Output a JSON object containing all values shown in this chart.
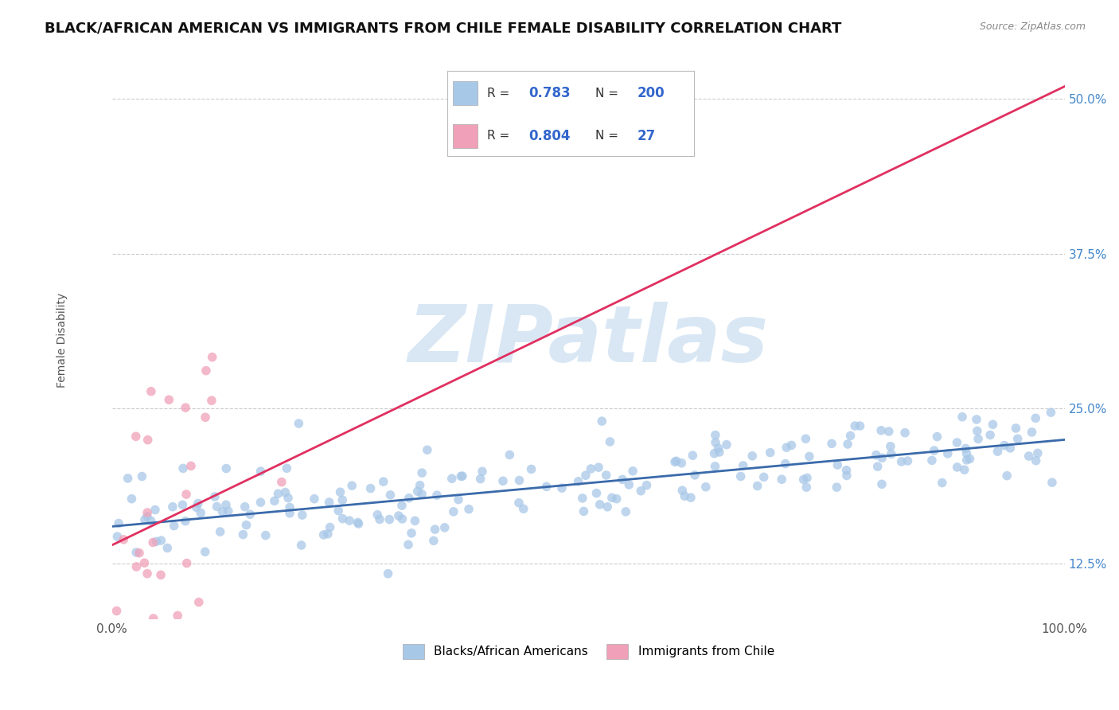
{
  "title": "BLACK/AFRICAN AMERICAN VS IMMIGRANTS FROM CHILE FEMALE DISABILITY CORRELATION CHART",
  "source": "Source: ZipAtlas.com",
  "ylabel": "Female Disability",
  "xlim": [
    0,
    100
  ],
  "ylim": [
    8,
    53
  ],
  "yticks": [
    12.5,
    25.0,
    37.5,
    50.0
  ],
  "ytick_labels": [
    "12.5%",
    "25.0%",
    "37.5%",
    "50.0%"
  ],
  "xticks": [
    0,
    10,
    20,
    30,
    40,
    50,
    60,
    70,
    80,
    90,
    100
  ],
  "xtick_labels": [
    "0.0%",
    "",
    "",
    "",
    "",
    "",
    "",
    "",
    "",
    "",
    "100.0%"
  ],
  "blue_R": 0.783,
  "blue_N": 200,
  "pink_R": 0.804,
  "pink_N": 27,
  "blue_color": "#a8c8e8",
  "pink_color": "#f0a0b8",
  "blue_line_color": "#3a6aaa",
  "pink_line_color": "#e03060",
  "legend_label_blue": "Blacks/African Americans",
  "legend_label_pink": "Immigrants from Chile",
  "watermark": "ZIPatlas",
  "watermark_color": "#c0d8ee",
  "background_color": "#ffffff",
  "grid_color": "#cccccc",
  "title_fontsize": 13,
  "label_fontsize": 10,
  "tick_fontsize": 11,
  "legend_fontsize": 11,
  "blue_line_x0": 0,
  "blue_line_y0": 15.5,
  "blue_line_x1": 100,
  "blue_line_y1": 22.5,
  "pink_line_x0": 0,
  "pink_line_y0": 14.0,
  "pink_line_x1": 100,
  "pink_line_y1": 51.0
}
